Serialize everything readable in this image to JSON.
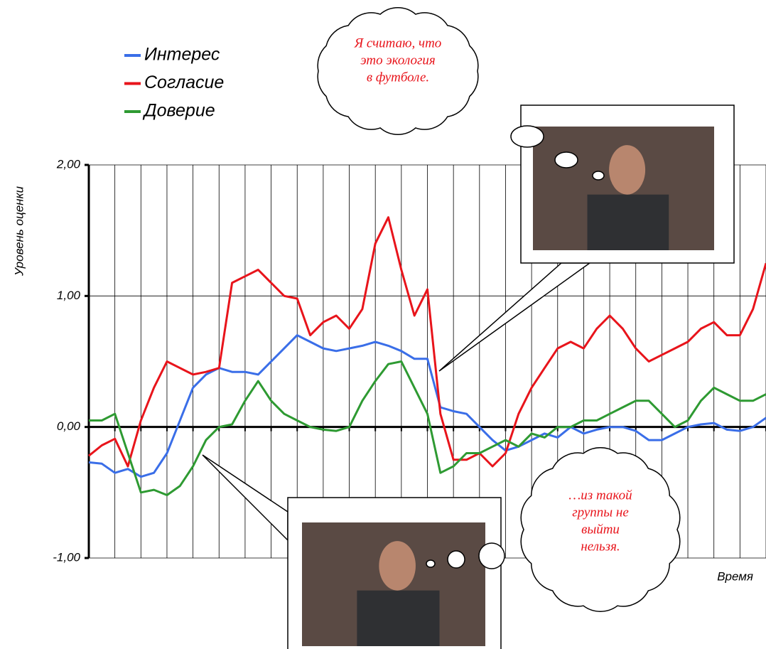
{
  "chart_data": {
    "type": "line",
    "ylabel": "Уровень оценки",
    "xlabel": "Время",
    "x": [
      0,
      0.5,
      1,
      1.5,
      2,
      2.5,
      3,
      3.5,
      4,
      4.5,
      5,
      5.5,
      6,
      6.5,
      7,
      7.5,
      8,
      8.5,
      9,
      9.5,
      10,
      10.5,
      11,
      11.5,
      12,
      12.5,
      13,
      13.5,
      14,
      14.5,
      15,
      15.5,
      16,
      16.5,
      17,
      17.5,
      18,
      18.5,
      19,
      19.5,
      20,
      20.5,
      21,
      21.5,
      22,
      22.5,
      23,
      23.5,
      24,
      24.5,
      25,
      25.5,
      26
    ],
    "xlim": [
      0,
      26
    ],
    "xticks": [
      0,
      1,
      2,
      3,
      4,
      5,
      6,
      7,
      8,
      9,
      10,
      11,
      12,
      13,
      14,
      15,
      16,
      17,
      18,
      19,
      20,
      21,
      22,
      23,
      24,
      25,
      26
    ],
    "ylim": [
      -1,
      2
    ],
    "yticks": [
      {
        "value": -1,
        "label": "-1,00"
      },
      {
        "value": 0,
        "label": "0,00"
      },
      {
        "value": 1,
        "label": "1,00"
      },
      {
        "value": 2,
        "label": "2,00"
      }
    ],
    "grid": true,
    "legend": "top-left",
    "series": [
      {
        "name": "Интерес",
        "color": "#3a6ee8",
        "values": [
          -0.27,
          -0.28,
          -0.35,
          -0.32,
          -0.38,
          -0.35,
          -0.2,
          0.05,
          0.3,
          0.4,
          0.45,
          0.42,
          0.42,
          0.4,
          0.5,
          0.6,
          0.7,
          0.65,
          0.6,
          0.58,
          0.6,
          0.62,
          0.65,
          0.62,
          0.58,
          0.52,
          0.52,
          0.15,
          0.12,
          0.1,
          0.0,
          -0.1,
          -0.18,
          -0.15,
          -0.1,
          -0.05,
          -0.08,
          0.0,
          -0.05,
          -0.02,
          0.0,
          0.0,
          -0.03,
          -0.1,
          -0.1,
          -0.05,
          0.0,
          0.02,
          0.03,
          -0.02,
          -0.03,
          0.0,
          0.07
        ]
      },
      {
        "name": "Согласие",
        "color": "#e8141b",
        "values": [
          -0.22,
          -0.14,
          -0.09,
          -0.3,
          0.05,
          0.3,
          0.5,
          0.45,
          0.4,
          0.42,
          0.45,
          1.1,
          1.15,
          1.2,
          1.1,
          1.0,
          0.98,
          0.7,
          0.8,
          0.85,
          0.75,
          0.9,
          1.4,
          1.6,
          1.2,
          0.85,
          1.05,
          0.1,
          -0.25,
          -0.25,
          -0.2,
          -0.3,
          -0.2,
          0.1,
          0.3,
          0.45,
          0.6,
          0.65,
          0.6,
          0.75,
          0.85,
          0.75,
          0.6,
          0.5,
          0.55,
          0.6,
          0.65,
          0.75,
          0.8,
          0.7,
          0.7,
          0.9,
          1.25
        ]
      },
      {
        "name": "Доверие",
        "color": "#2e9a32",
        "values": [
          0.05,
          0.05,
          0.1,
          -0.2,
          -0.5,
          -0.48,
          -0.52,
          -0.45,
          -0.3,
          -0.1,
          0.0,
          0.02,
          0.2,
          0.35,
          0.2,
          0.1,
          0.05,
          0.0,
          -0.02,
          -0.03,
          0.0,
          0.2,
          0.35,
          0.48,
          0.5,
          0.3,
          0.1,
          -0.35,
          -0.3,
          -0.2,
          -0.2,
          -0.15,
          -0.1,
          -0.15,
          -0.05,
          -0.08,
          0.0,
          0.0,
          0.05,
          0.05,
          0.1,
          0.15,
          0.2,
          0.2,
          0.1,
          0.0,
          0.05,
          0.2,
          0.3,
          0.25,
          0.2,
          0.2,
          0.25
        ]
      }
    ],
    "annotations": [
      {
        "lines": [
          "Я считаю, что",
          "это экология",
          "в футболе."
        ]
      },
      {
        "lines": [
          "…из такой",
          "группы не",
          "выйти",
          "нельзя."
        ]
      }
    ]
  }
}
